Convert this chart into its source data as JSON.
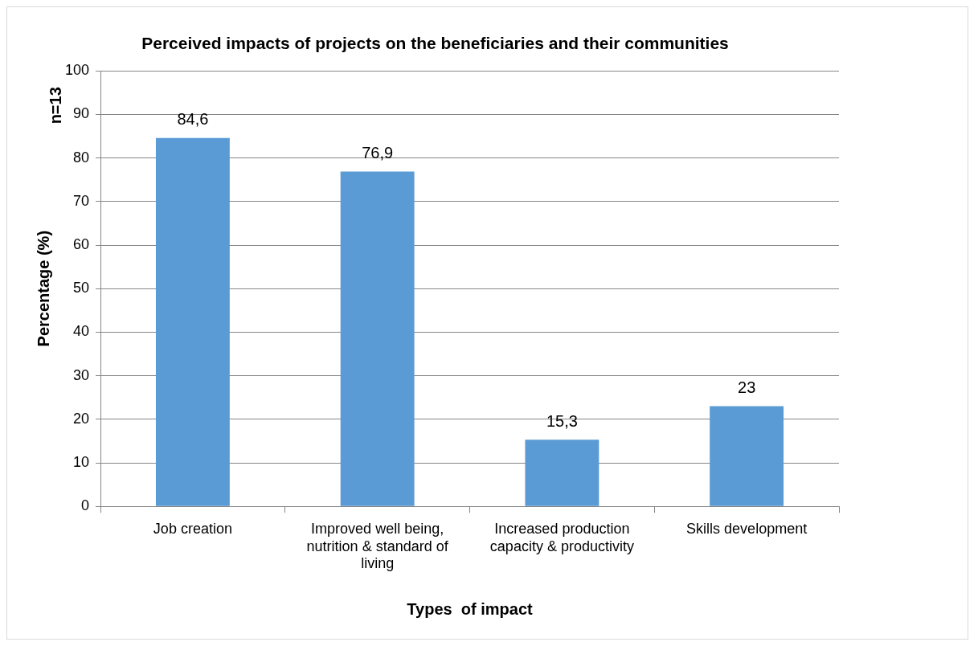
{
  "chart_data": {
    "type": "bar",
    "title": "Perceived impacts of projects on the beneficiaries and their communities",
    "categories": [
      "Job creation",
      "Improved well being, nutrition & standard of living",
      "Increased production capacity & productivity",
      "Skills development"
    ],
    "values": [
      84.6,
      76.9,
      15.3,
      23
    ],
    "value_labels": [
      "84,6",
      "76,9",
      "15,3",
      "23"
    ],
    "color": "#5b9bd5",
    "xlabel": "Types  of impact",
    "ylabel": "Percentage (%)",
    "annotations": [
      "n=13"
    ],
    "ylim": [
      0,
      100
    ],
    "yticks": [
      0,
      10,
      20,
      30,
      40,
      50,
      60,
      70,
      80,
      90,
      100
    ],
    "grid": "y",
    "legend": false
  }
}
